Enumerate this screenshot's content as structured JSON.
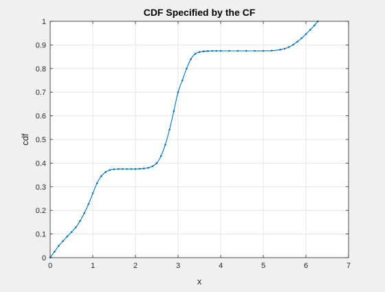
{
  "chart_data": {
    "type": "line",
    "title": "CDF Specified by the CF",
    "xlabel": "x",
    "ylabel": "cdf",
    "xlim": [
      0,
      7
    ],
    "ylim": [
      0,
      1
    ],
    "xticks": [
      0,
      1,
      2,
      3,
      4,
      5,
      6,
      7
    ],
    "yticks": [
      0,
      0.1,
      0.2,
      0.3,
      0.4,
      0.5,
      0.6,
      0.7,
      0.8,
      0.9,
      1
    ],
    "xtick_labels": [
      "0",
      "1",
      "2",
      "3",
      "4",
      "5",
      "6",
      "7"
    ],
    "ytick_labels": [
      "0",
      "0.1",
      "0.2",
      "0.3",
      "0.4",
      "0.5",
      "0.6",
      "0.7",
      "0.8",
      "0.9",
      "1"
    ],
    "grid": true,
    "marker": "dot",
    "color": "#0072bd",
    "series": [
      {
        "x": [
          0,
          0.1,
          0.2,
          0.3,
          0.4,
          0.5,
          0.6,
          0.7,
          0.8,
          0.9,
          1.0,
          1.1,
          1.2,
          1.3,
          1.4,
          1.5,
          1.6,
          1.7,
          1.8,
          1.9,
          2.0,
          2.1,
          2.2,
          2.3,
          2.4,
          2.5,
          2.6,
          2.7,
          2.8,
          2.9,
          3.0,
          3.1,
          3.2,
          3.3,
          3.4,
          3.5,
          3.6,
          3.7,
          3.8,
          3.9,
          4.0,
          4.2,
          4.4,
          4.6,
          4.8,
          5.0,
          5.2,
          5.4,
          5.5,
          5.6,
          5.7,
          5.8,
          5.9,
          6.0,
          6.1,
          6.2,
          6.28
        ],
        "y": [
          0,
          0.025,
          0.05,
          0.07,
          0.09,
          0.108,
          0.128,
          0.155,
          0.188,
          0.227,
          0.272,
          0.315,
          0.345,
          0.362,
          0.371,
          0.374,
          0.375,
          0.375,
          0.375,
          0.375,
          0.375,
          0.376,
          0.377,
          0.38,
          0.387,
          0.4,
          0.43,
          0.478,
          0.542,
          0.62,
          0.7,
          0.75,
          0.8,
          0.84,
          0.862,
          0.87,
          0.873,
          0.874,
          0.875,
          0.875,
          0.875,
          0.875,
          0.875,
          0.875,
          0.875,
          0.875,
          0.876,
          0.88,
          0.884,
          0.891,
          0.901,
          0.914,
          0.929,
          0.946,
          0.964,
          0.983,
          1.0
        ]
      }
    ]
  }
}
